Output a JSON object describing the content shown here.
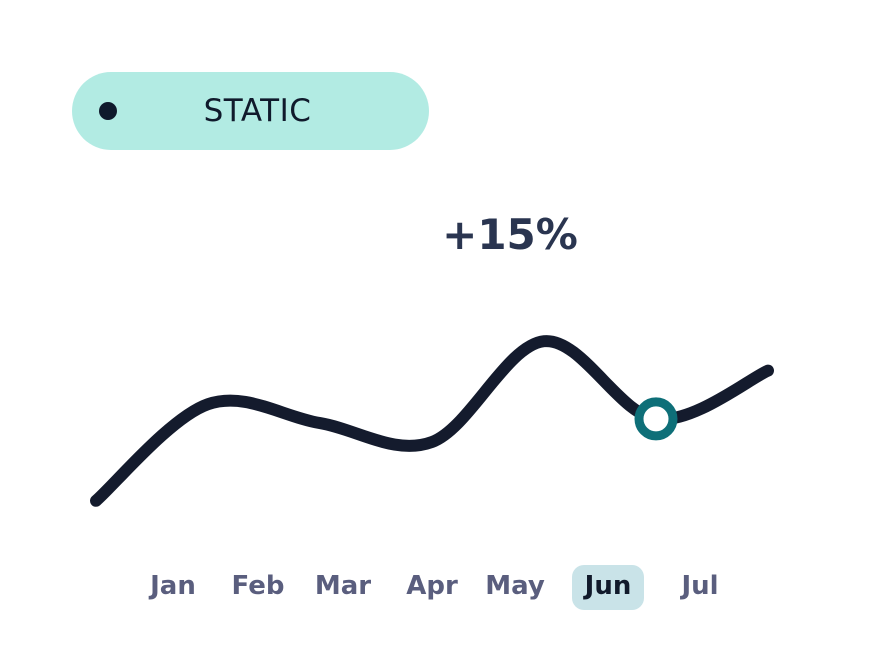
{
  "badge": {
    "label": "STATIC"
  },
  "delta_label": "+15%",
  "colors": {
    "badge_bg": "#b2ebe3",
    "line": "#141b2d",
    "marker_ring": "#0e6f78",
    "highlight": "#c9e3e8",
    "month_text": "#5a5e7e",
    "month_active_text": "#111a2b"
  },
  "chart_data": {
    "type": "line",
    "title": "",
    "xlabel": "",
    "ylabel": "",
    "categories": [
      "Jan",
      "Feb",
      "Mar",
      "Apr",
      "May",
      "Jun",
      "Jul"
    ],
    "active_category": "Jun",
    "grid": false,
    "legend": "none",
    "smooth": true,
    "series": [
      {
        "values": [
          2,
          48,
          39,
          30,
          78,
          41,
          64
        ]
      }
    ]
  }
}
